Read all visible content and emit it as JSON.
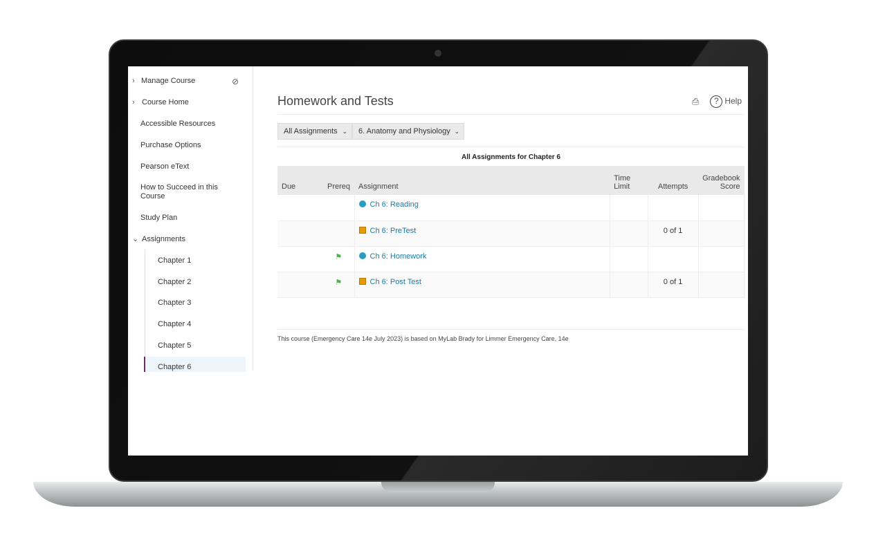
{
  "sidebar": {
    "items": [
      {
        "label": "Manage Course",
        "chevron": "right"
      },
      {
        "label": "Course Home",
        "chevron": "right"
      },
      {
        "label": "Accessible Resources"
      },
      {
        "label": "Purchase Options"
      },
      {
        "label": "Pearson eText"
      },
      {
        "label": "How to Succeed in this Course"
      },
      {
        "label": "Study Plan"
      },
      {
        "label": "Assignments",
        "chevron": "down"
      }
    ],
    "chapters": [
      "Chapter 1",
      "Chapter 2",
      "Chapter 3",
      "Chapter 4",
      "Chapter 5",
      "Chapter 6"
    ],
    "active_chapter": "Chapter 6"
  },
  "header": {
    "title": "Homework and Tests",
    "help": "Help"
  },
  "filters": {
    "type": "All Assignments",
    "chapter": "6. Anatomy and Physiology"
  },
  "table": {
    "caption": "All Assignments for Chapter 6",
    "columns": [
      "Due",
      "Prereq",
      "Assignment",
      "Time Limit",
      "Attempts",
      "Gradebook Score"
    ],
    "rows": [
      {
        "due": "",
        "prereq": false,
        "icon": "circle",
        "assignment": "Ch 6: Reading",
        "time": "",
        "attempts": "",
        "score": ""
      },
      {
        "due": "",
        "prereq": false,
        "icon": "square",
        "assignment": "Ch 6: PreTest",
        "time": "",
        "attempts": "0 of 1",
        "score": ""
      },
      {
        "due": "",
        "prereq": true,
        "icon": "circle",
        "assignment": "Ch 6: Homework",
        "time": "",
        "attempts": "",
        "score": ""
      },
      {
        "due": "",
        "prereq": true,
        "icon": "square",
        "assignment": "Ch 6: Post Test",
        "time": "",
        "attempts": "0 of 1",
        "score": ""
      }
    ]
  },
  "footer": "This course (Emergency Care 14e July 2023) is based on MyLab Brady for Limmer Emergency Care, 14e",
  "colors": {
    "link": "#1a7aa8",
    "circle": "#2a9cc0",
    "square": "#e69a0a",
    "flag": "#4caf50",
    "active": "#6b2c5f"
  }
}
